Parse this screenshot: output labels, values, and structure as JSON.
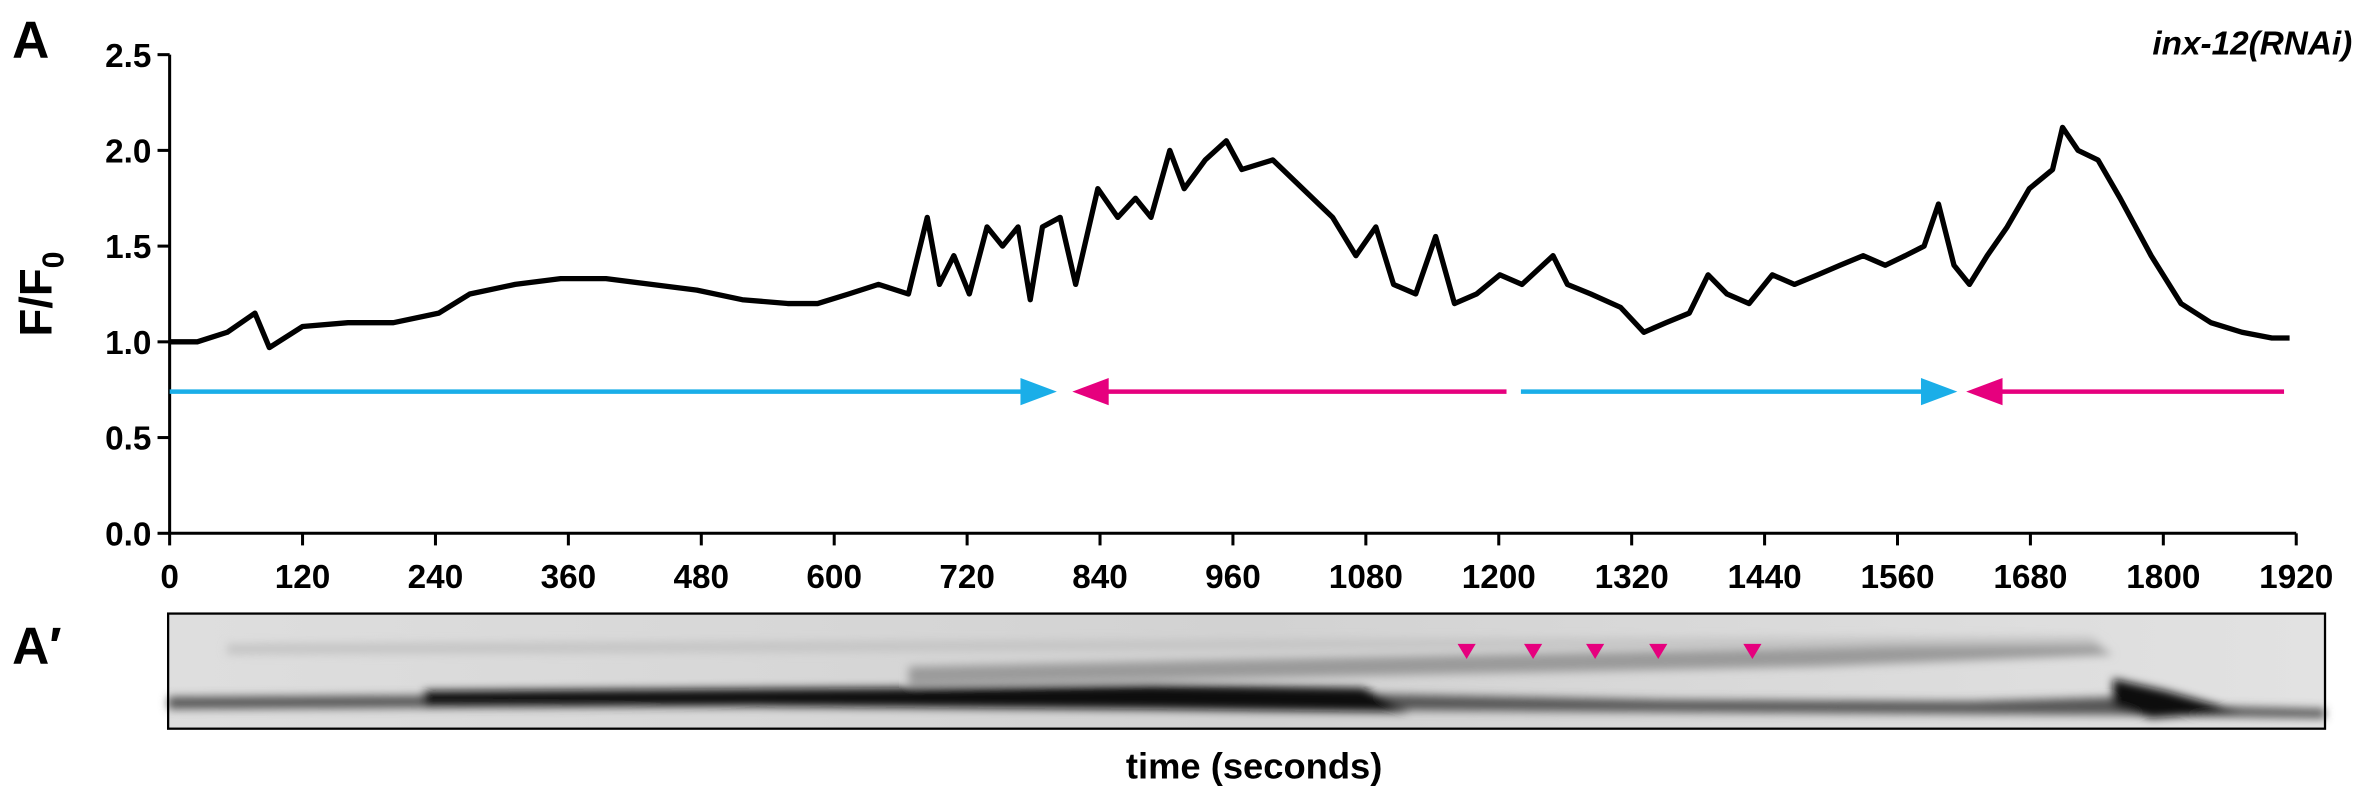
{
  "chart_data": {
    "type": "line",
    "panel_label": "A",
    "kymograph_label": "A′",
    "title": "inx-12(RNAi)",
    "ylabel": "F/F",
    "ylabel_subscript": "0",
    "xlabel": "time (seconds)",
    "x": [
      0,
      25,
      52,
      77,
      90,
      120,
      161,
      202,
      243,
      271,
      312,
      353,
      394,
      435,
      476,
      517,
      558,
      585,
      613,
      640,
      667,
      684,
      695,
      708,
      722,
      738,
      752,
      766,
      777,
      788,
      804,
      818,
      838,
      856,
      872,
      886,
      903,
      916,
      935,
      954,
      968,
      996,
      1023,
      1050,
      1071,
      1089,
      1105,
      1125,
      1143,
      1160,
      1180,
      1201,
      1221,
      1249,
      1262,
      1283,
      1310,
      1331,
      1351,
      1372,
      1389,
      1406,
      1426,
      1447,
      1467,
      1488,
      1508,
      1529,
      1549,
      1567,
      1584,
      1597,
      1611,
      1625,
      1641,
      1659,
      1679,
      1700,
      1709,
      1723,
      1741,
      1761,
      1789,
      1816,
      1843,
      1871,
      1898,
      1914
    ],
    "series": [
      {
        "color": "#000000",
        "values": [
          1.0,
          1.0,
          1.05,
          1.15,
          0.97,
          1.08,
          1.1,
          1.1,
          1.15,
          1.25,
          1.3,
          1.33,
          1.33,
          1.3,
          1.27,
          1.22,
          1.2,
          1.2,
          1.25,
          1.3,
          1.25,
          1.65,
          1.3,
          1.45,
          1.25,
          1.6,
          1.5,
          1.6,
          1.22,
          1.6,
          1.65,
          1.3,
          1.8,
          1.65,
          1.75,
          1.65,
          2.0,
          1.8,
          1.95,
          2.05,
          1.9,
          1.95,
          1.8,
          1.65,
          1.45,
          1.6,
          1.3,
          1.25,
          1.55,
          1.2,
          1.25,
          1.35,
          1.3,
          1.45,
          1.3,
          1.25,
          1.18,
          1.05,
          1.1,
          1.15,
          1.35,
          1.25,
          1.2,
          1.35,
          1.3,
          1.35,
          1.4,
          1.45,
          1.4,
          1.45,
          1.5,
          1.72,
          1.4,
          1.3,
          1.45,
          1.6,
          1.8,
          1.9,
          2.12,
          2.0,
          1.95,
          1.75,
          1.45,
          1.2,
          1.1,
          1.05,
          1.02,
          1.02
        ]
      }
    ],
    "xlim": [
      0,
      1920
    ],
    "xticks": [
      0,
      120,
      240,
      360,
      480,
      600,
      720,
      840,
      960,
      1080,
      1200,
      1320,
      1440,
      1560,
      1680,
      1800,
      1920
    ],
    "ylim": [
      0,
      2.5
    ],
    "yticks": [
      {
        "value": 0,
        "label": "0.0"
      },
      0.5,
      {
        "value": 1,
        "label": "1.0"
      },
      1.5,
      {
        "value": 2,
        "label": "2.0"
      },
      2.5
    ],
    "arrows": [
      {
        "from": 0,
        "to": 801,
        "y": 0.74,
        "color": "#1aaee8"
      },
      {
        "from": 1207,
        "to": 815,
        "y": 0.74,
        "color": "#e6007e"
      },
      {
        "from": 1220,
        "to": 1614,
        "y": 0.74,
        "color": "#1aaee8"
      },
      {
        "from": 1909,
        "to": 1622,
        "y": 0.74,
        "color": "#e6007e"
      }
    ],
    "kymograph_markers": {
      "x": [
        1171,
        1231,
        1287,
        1344,
        1429
      ],
      "color": "#e6007e"
    }
  }
}
